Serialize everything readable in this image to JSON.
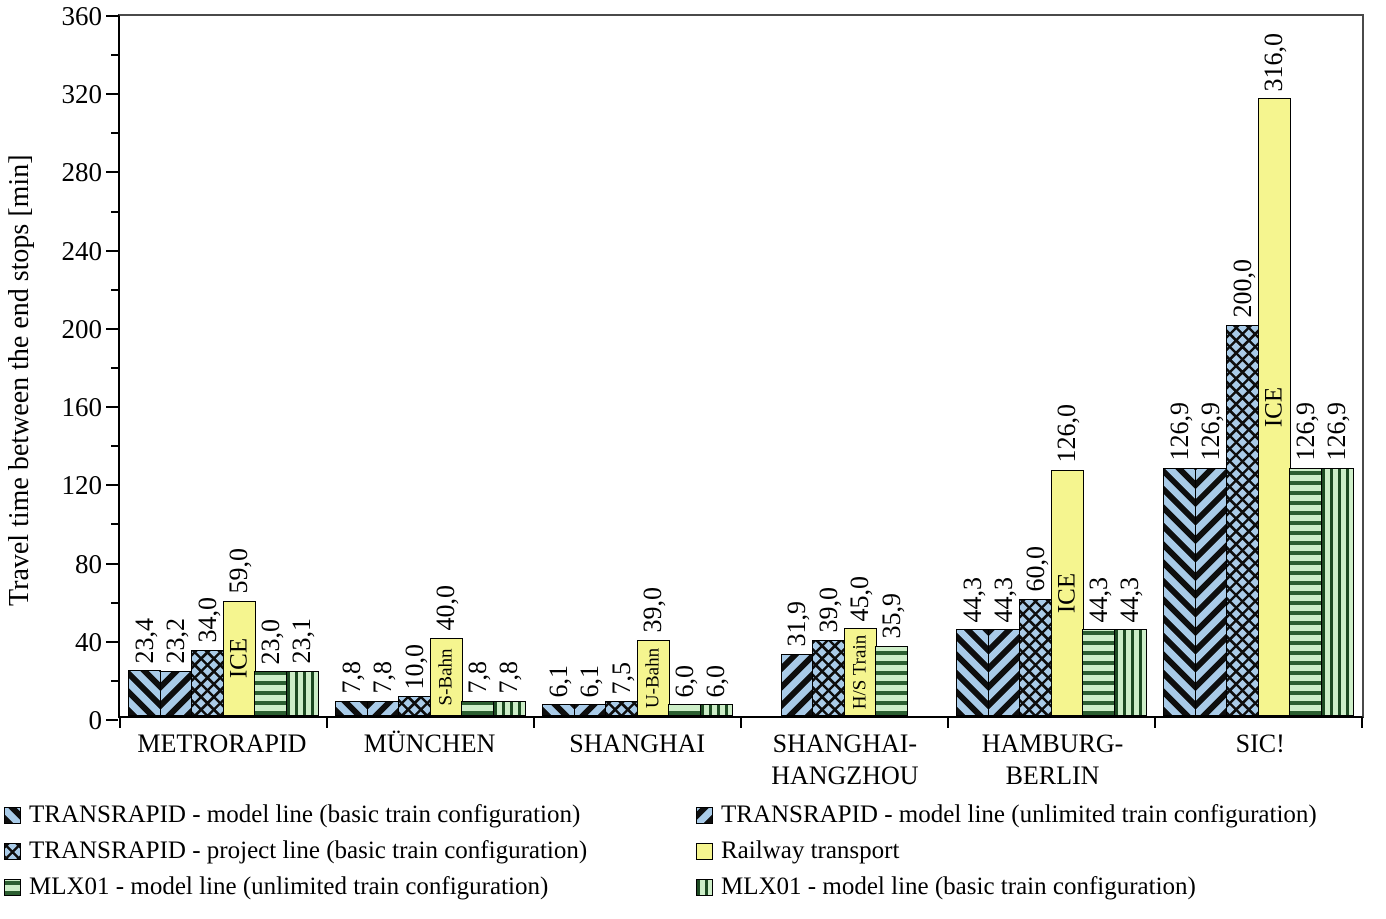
{
  "chart_data": {
    "type": "bar",
    "title": "",
    "ylabel": "Travel time between the end stops [min]",
    "xlabel": "",
    "ylim": [
      0,
      360
    ],
    "ytick_major": 40,
    "ytick_minor": 20,
    "yticks": [
      "0",
      "40",
      "80",
      "120",
      "160",
      "200",
      "240",
      "280",
      "320",
      "360"
    ],
    "grid": "off",
    "decimal_separator": ",",
    "categories": [
      {
        "id": "metrorapid",
        "lines": [
          "METRORAPID"
        ]
      },
      {
        "id": "muenchen",
        "lines": [
          "MÜNCHEN"
        ]
      },
      {
        "id": "shanghai",
        "lines": [
          "SHANGHAI"
        ]
      },
      {
        "id": "shanghai-hangzhou",
        "lines": [
          "SHANGHAI-",
          "HANGZHOU"
        ]
      },
      {
        "id": "hamburg-berlin",
        "lines": [
          "HAMBURG-",
          "BERLIN"
        ]
      },
      {
        "id": "sic",
        "lines": [
          "SIC!"
        ]
      }
    ],
    "series": [
      {
        "id": "transrapid_model_basic",
        "name": "TRANSRAPID - model line (basic train  configuration)",
        "pattern": "blue-diagonal-down",
        "values": [
          23.4,
          7.8,
          6.1,
          null,
          44.3,
          126.9
        ],
        "labels": [
          "23,4",
          "7,8",
          "6,1",
          null,
          "44,3",
          "126,9"
        ]
      },
      {
        "id": "transrapid_model_unlimited",
        "name": "TRANSRAPID - model line (unlimited train configuration)",
        "pattern": "blue-diagonal-up",
        "values": [
          23.2,
          7.8,
          6.1,
          31.9,
          44.3,
          126.9
        ],
        "labels": [
          "23,2",
          "7,8",
          "6,1",
          "31,9",
          "44,3",
          "126,9"
        ]
      },
      {
        "id": "transrapid_project_basic",
        "name": "TRANSRAPID - project line (basic train configuration)",
        "pattern": "blue-crosshatch",
        "values": [
          34.0,
          10.0,
          7.5,
          39.0,
          60.0,
          200.0
        ],
        "labels": [
          "34,0",
          "10,0",
          "7,5",
          "39,0",
          "60,0",
          "200,0"
        ]
      },
      {
        "id": "railway",
        "name": "Railway transport",
        "pattern": "yellow-solid",
        "values": [
          59.0,
          40.0,
          39.0,
          45.0,
          126.0,
          316.0
        ],
        "labels": [
          "59,0",
          "40,0",
          "39,0",
          "45,0",
          "126,0",
          "316,0"
        ],
        "bar_texts": [
          "ICE",
          "S-Bahn",
          "U-Bahn",
          "H/S Train",
          "ICE",
          "ICE"
        ]
      },
      {
        "id": "mlx01_unlimited",
        "name": "MLX01 - model line (unlimited train configuration)",
        "pattern": "green-horizontal",
        "values": [
          23.0,
          7.8,
          6.0,
          35.9,
          44.3,
          126.9
        ],
        "labels": [
          "23,0",
          "7,8",
          "6,0",
          "35,9",
          "44,3",
          "126,9"
        ]
      },
      {
        "id": "mlx01_basic",
        "name": "MLX01 - model line (basic train configuration)",
        "pattern": "green-vertical",
        "values": [
          23.1,
          7.8,
          6.0,
          null,
          44.3,
          126.9
        ],
        "labels": [
          "23,1",
          "7,8",
          "6,0",
          null,
          "44,3",
          "126,9"
        ]
      }
    ],
    "legend_columns": [
      [
        "transrapid_model_basic",
        "transrapid_project_basic",
        "mlx01_unlimited"
      ],
      [
        "transrapid_model_unlimited",
        "railway",
        "mlx01_basic"
      ]
    ],
    "colors": {
      "blue_fill": "#a9cbe8",
      "yellow_fill": "#f5f58f",
      "green_fill": "#cdeec8",
      "hatch_dark": "#0e0e0e",
      "green_stripe": "#2c5f31"
    }
  }
}
